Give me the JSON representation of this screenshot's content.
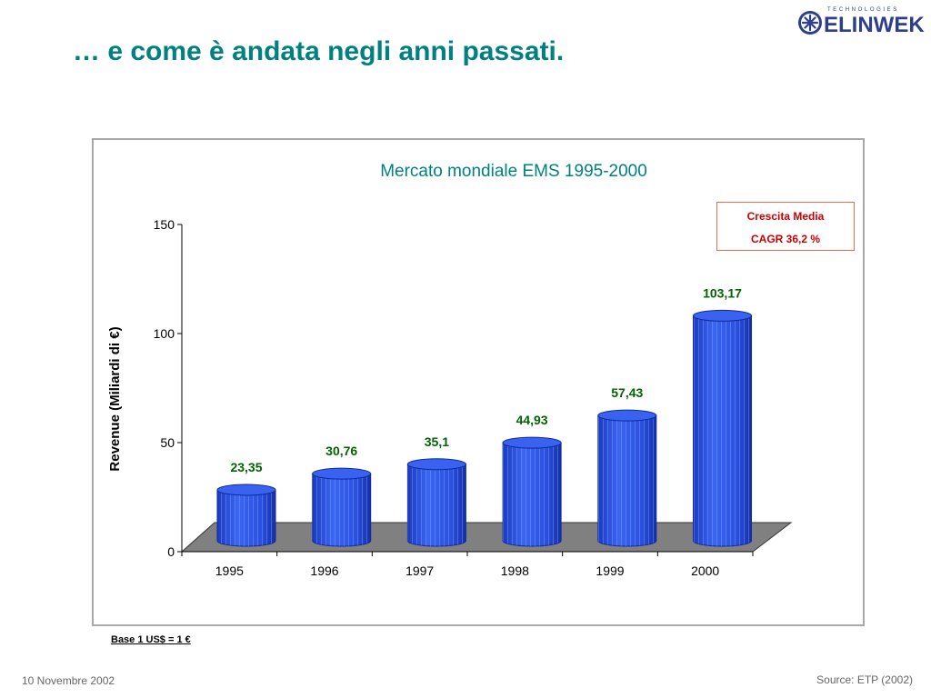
{
  "slide": {
    "title": "… e come è andata negli anni passati.",
    "footer_date": "10 Novembre 2002",
    "footer_source": "Source: ETP (2002)",
    "base_note": "Base 1 US$ = 1 €"
  },
  "logo": {
    "text": "ELINWEK",
    "tagline": "TECHNOLOGIES",
    "color": "#2d3f8c"
  },
  "cagr": {
    "line1": "Crescita Media",
    "line2": "CAGR  36,2  %"
  },
  "colors": {
    "title": "#008080",
    "bar": "#2a52e0",
    "bar_top": "#3a62f0",
    "value_label": "#006400",
    "floor": "#808080",
    "cagr_text": "#cc0000"
  },
  "chart_data": {
    "type": "bar",
    "style": "3d-cylinder",
    "title": "Mercato mondiale EMS 1995-2000",
    "categories": [
      "1995",
      "1996",
      "1997",
      "1998",
      "1999",
      "2000"
    ],
    "values": [
      23.35,
      30.76,
      35.1,
      44.93,
      57.43,
      103.17
    ],
    "value_labels": [
      "23,35",
      "30,76",
      "35,1",
      "44,93",
      "57,43",
      "103,17"
    ],
    "xlabel": "",
    "ylabel": "Revenue (Miliardi di €)",
    "ylim": [
      0,
      150
    ],
    "yticks": [
      "0",
      "50",
      "100",
      "150"
    ],
    "ytick_values": [
      0,
      50,
      100,
      150
    ],
    "grid": false,
    "legend": "none"
  }
}
